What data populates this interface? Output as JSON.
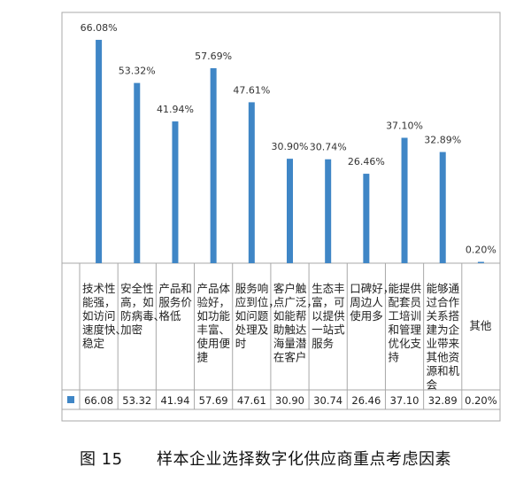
{
  "chart_data": {
    "type": "bar",
    "categories": [
      [
        "技术性",
        "能强，",
        "如访问",
        "速度快、",
        "稳定"
      ],
      [
        "安全性",
        "高，如",
        "防病毒、",
        "加密"
      ],
      [
        "产品和",
        "服务价",
        "格低"
      ],
      [
        "产品体",
        "验好，",
        "如功能",
        "丰富、",
        "使用便",
        "捷"
      ],
      [
        "服务响",
        "应到位，",
        "如问题",
        "处理及",
        "时"
      ],
      [
        "客户触",
        "点广泛，",
        "如能帮",
        "助触达",
        "海量潜",
        "在客户"
      ],
      [
        "生态丰",
        "富，可",
        "以提供",
        "一站式",
        "服务"
      ],
      [
        "口碑好，",
        "周边人",
        "使用多"
      ],
      [
        "能提供",
        "配套员",
        "工培训",
        "和管理",
        "优化支",
        "持"
      ],
      [
        "能够通",
        "过合作",
        "关系搭",
        "建为企",
        "业带来",
        "其他资",
        "源和机",
        "会"
      ],
      [
        "其他"
      ]
    ],
    "values": [
      66.08,
      53.32,
      41.94,
      57.69,
      47.61,
      30.9,
      30.74,
      26.46,
      37.1,
      32.89,
      0.2
    ],
    "bar_labels": [
      "66.08%",
      "53.32%",
      "41.94%",
      "57.69%",
      "47.61%",
      "30.90%",
      "30.74%",
      "26.46%",
      "37.10%",
      "32.89%",
      "0.20%"
    ],
    "table_values": [
      "66.08",
      "53.32",
      "41.94",
      "57.69",
      "47.61",
      "30.90",
      "30.74",
      "26.46",
      "37.10",
      "32.89",
      "0.20%"
    ],
    "ylim": [
      0,
      70
    ],
    "bar_color": "#3f86c6",
    "grid": false,
    "legend": "table-row"
  },
  "caption": {
    "number": "图 15",
    "title": "样本企业选择数字化供应商重点考虑因素"
  }
}
